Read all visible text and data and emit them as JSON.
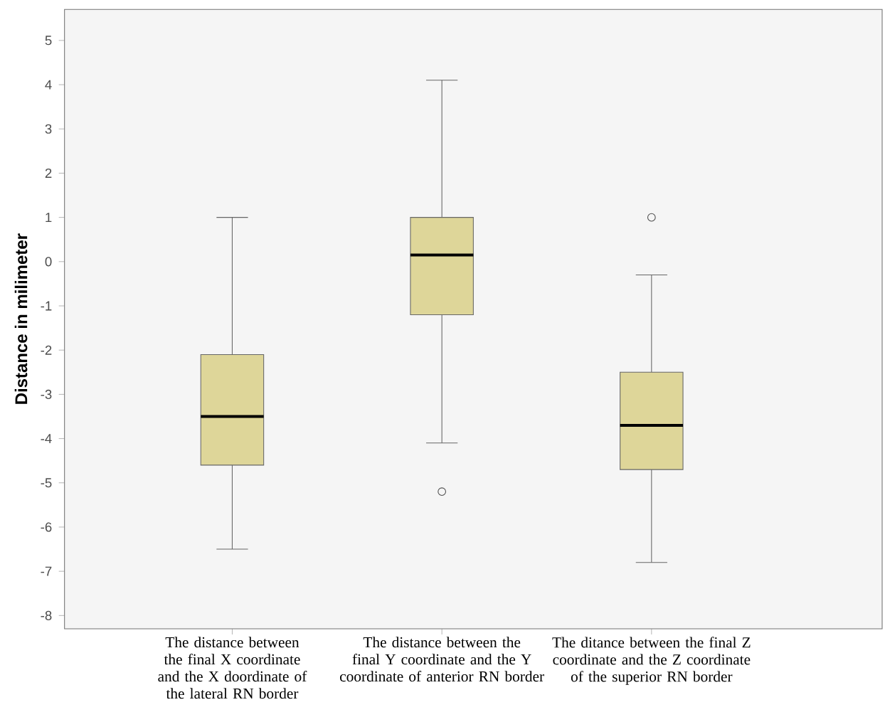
{
  "chart_data": {
    "type": "box",
    "ylabel": "Distance in milimeter",
    "categories": [
      "The distance between the final X coordinate and the X doordinate of the lateral RN border",
      "The distance between the final Y coordinate and the Y coordinate of anterior RN border",
      "The ditance between the final Z coordinate and the Z coordinate of the superior RN border"
    ],
    "boxes": [
      {
        "low": -6.5,
        "q1": -4.6,
        "median": -3.5,
        "q3": -2.1,
        "high": 1.0
      },
      {
        "low": -4.1,
        "q1": -1.2,
        "median": 0.15,
        "q3": 1.0,
        "high": 4.1,
        "outliers": [
          -5.2
        ]
      },
      {
        "low": -6.8,
        "q1": -4.7,
        "median": -3.7,
        "q3": -2.5,
        "high": -0.3,
        "outliers": [
          1.0
        ]
      }
    ],
    "color": "#ded699",
    "ylim": [
      -8.3,
      5.7
    ],
    "yticks": [
      -8,
      -7,
      -6,
      -5,
      -4,
      -3,
      -2,
      -1,
      0,
      1,
      2,
      3,
      4,
      5
    ],
    "grid": false
  }
}
